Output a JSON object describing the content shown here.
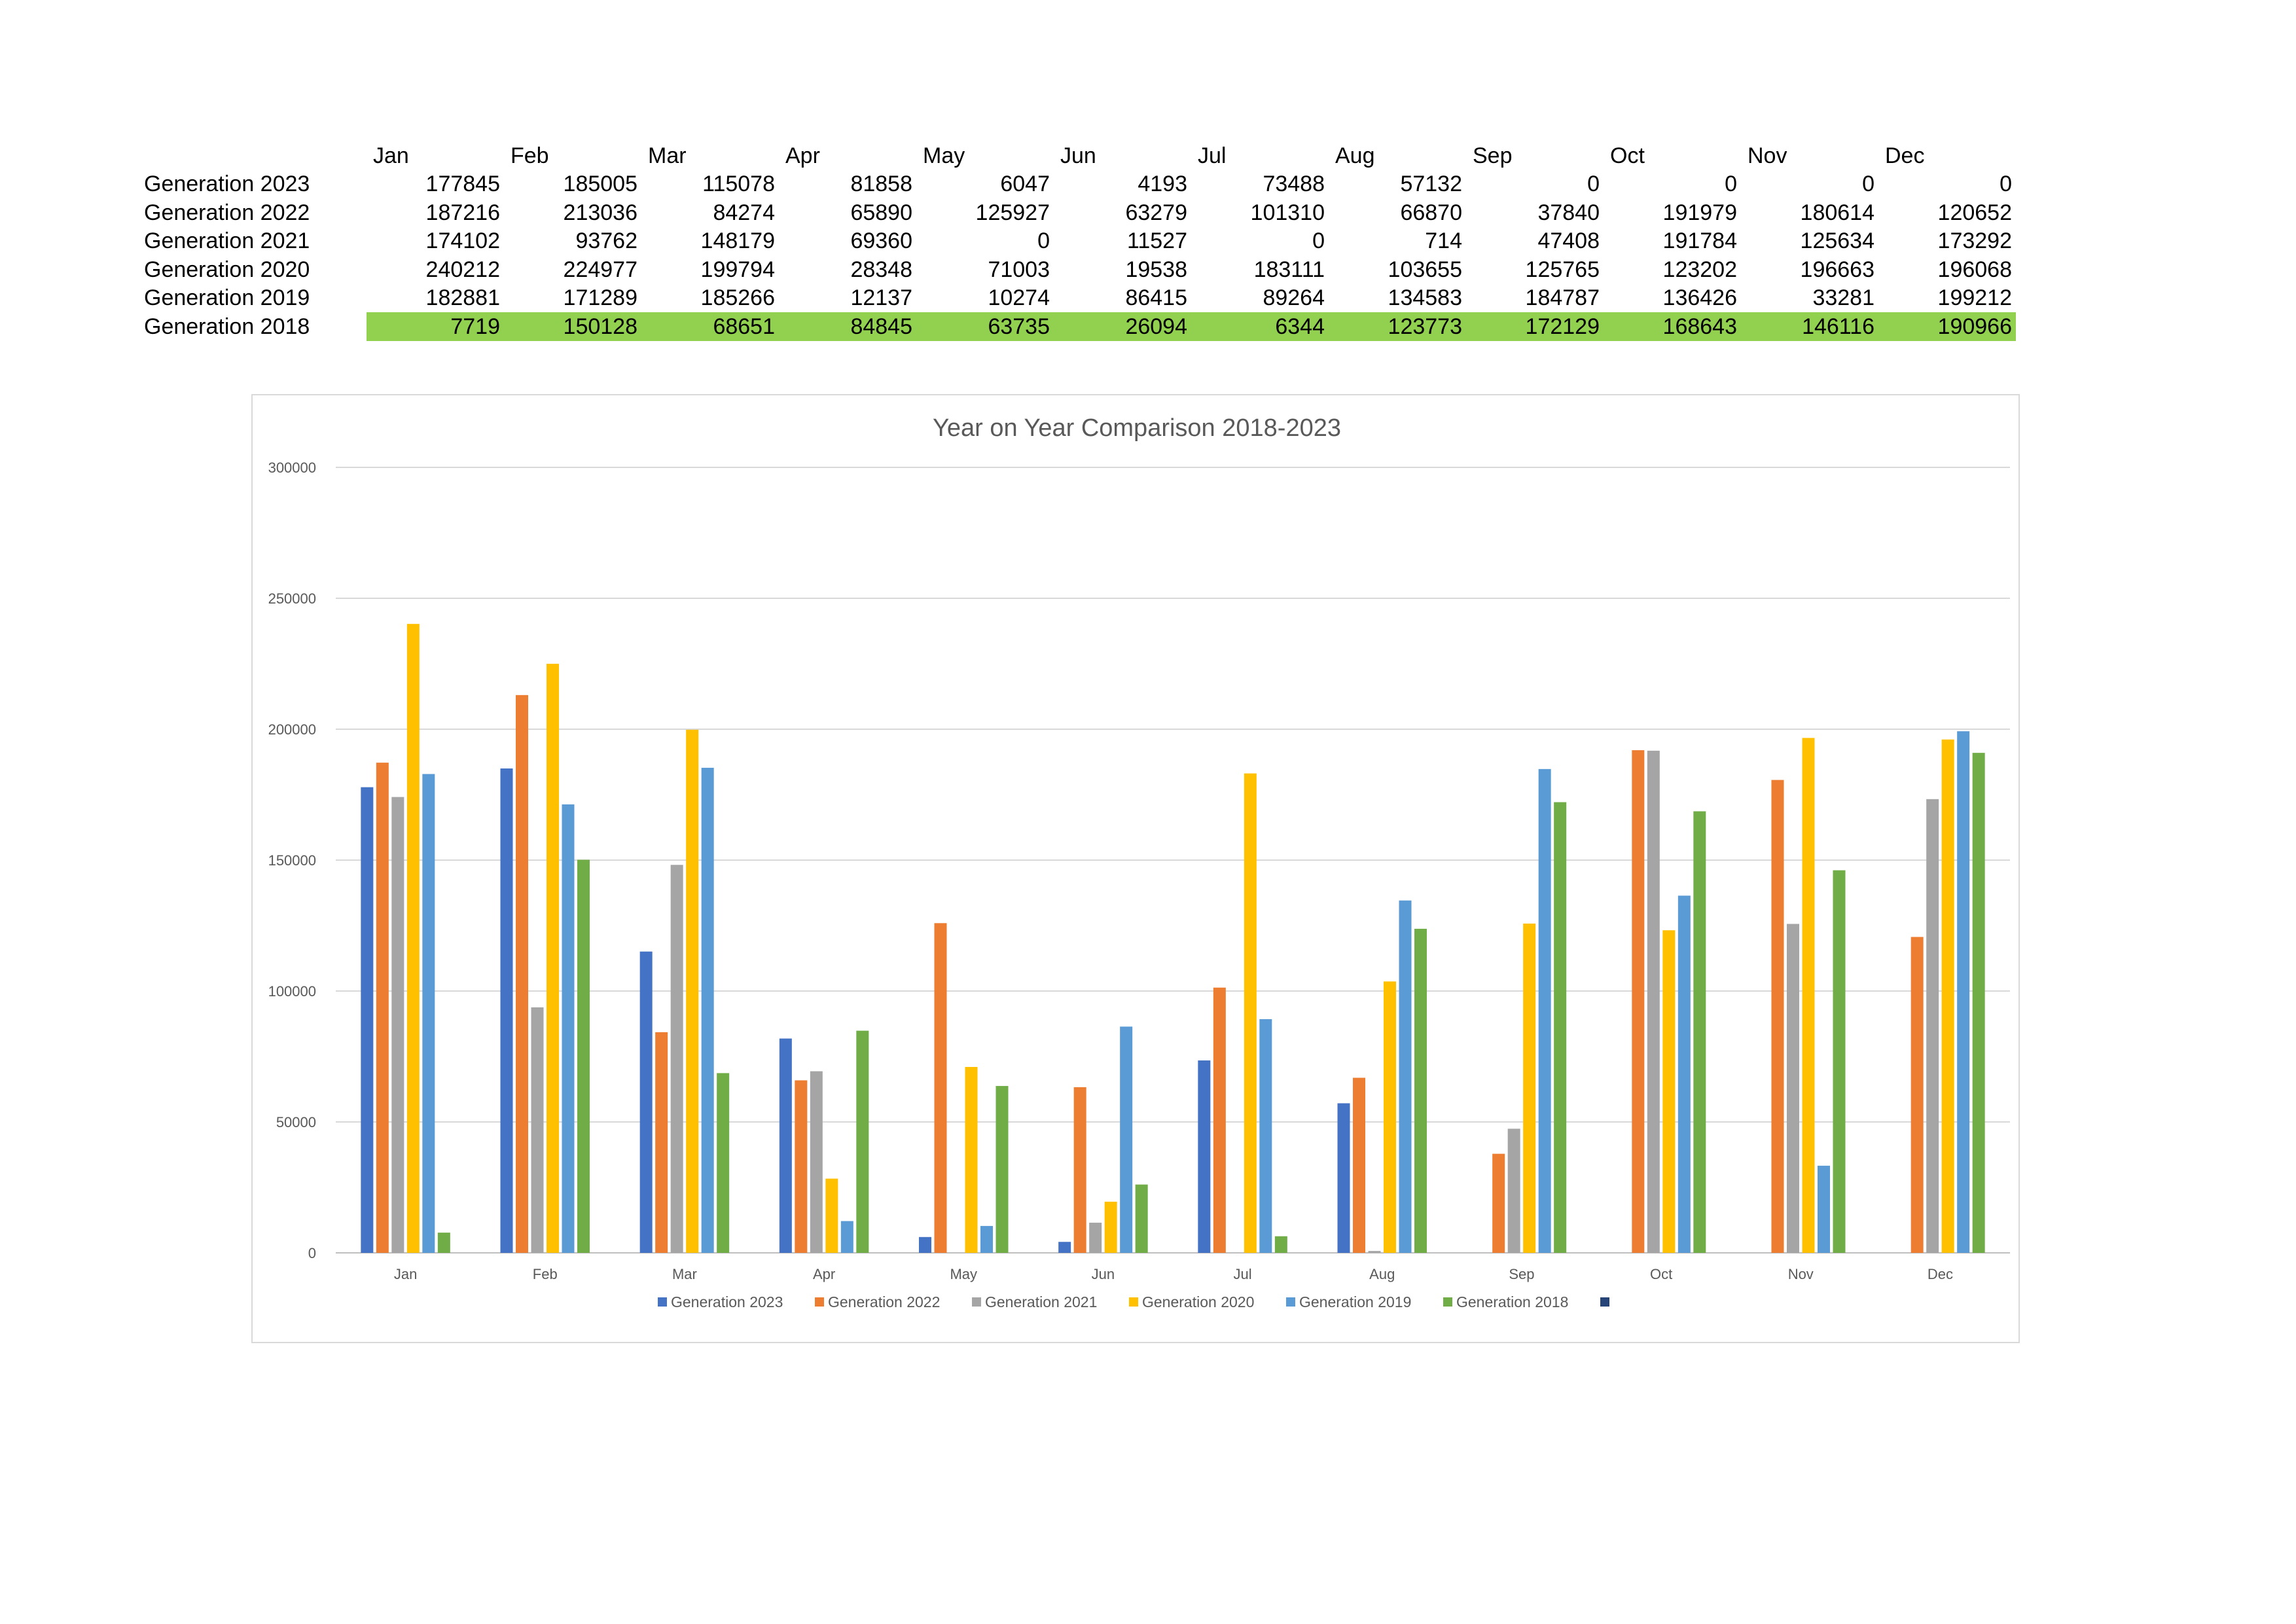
{
  "table": {
    "months": [
      "Jan",
      "Feb",
      "Mar",
      "Apr",
      "May",
      "Jun",
      "Jul",
      "Aug",
      "Sep",
      "Oct",
      "Nov",
      "Dec"
    ],
    "rows": [
      {
        "label": "Generation 2023",
        "values": [
          "177845",
          "185005",
          "115078",
          "81858",
          "6047",
          "4193",
          "73488",
          "57132",
          "0",
          "0",
          "0",
          "0"
        ]
      },
      {
        "label": "Generation 2022",
        "values": [
          "187216",
          "213036",
          "84274",
          "65890",
          "125927",
          "63279",
          "101310",
          "66870",
          "37840",
          "191979",
          "180614",
          "120652"
        ]
      },
      {
        "label": "Generation 2021",
        "values": [
          "174102",
          "93762",
          "148179",
          "69360",
          "0",
          "11527",
          "0",
          "714",
          "47408",
          "191784",
          "125634",
          "173292"
        ]
      },
      {
        "label": "Generation 2020",
        "values": [
          "240212",
          "224977",
          "199794",
          "28348",
          "71003",
          "19538",
          "183111",
          "103655",
          "125765",
          "123202",
          "196663",
          "196068"
        ]
      },
      {
        "label": "Generation 2019",
        "values": [
          "182881",
          "171289",
          "185266",
          "12137",
          "10274",
          "86415",
          "89264",
          "134583",
          "184787",
          "136426",
          "33281",
          "199212"
        ]
      },
      {
        "label": "Generation 2018",
        "values": [
          "7719",
          "150128",
          "68651",
          "84845",
          "63735",
          "26094",
          "6344",
          "123773",
          "172129",
          "168643",
          "146116",
          "190966"
        ],
        "highlight": true,
        "highlight_color": "#92d050"
      }
    ]
  },
  "chart_data": {
    "type": "bar",
    "title": "Year on Year Comparison 2018-2023",
    "xlabel": "",
    "ylabel": "",
    "ylim": [
      0,
      300000
    ],
    "yticks": [
      "0",
      "50000",
      "100000",
      "150000",
      "200000",
      "250000",
      "300000"
    ],
    "grid": true,
    "legend_position": "bottom",
    "categories": [
      "Jan",
      "Feb",
      "Mar",
      "Apr",
      "May",
      "Jun",
      "Jul",
      "Aug",
      "Sep",
      "Oct",
      "Nov",
      "Dec"
    ],
    "series": [
      {
        "name": "Generation 2023",
        "color": "#4472c4",
        "values": [
          177845,
          185005,
          115078,
          81858,
          6047,
          4193,
          73488,
          57132,
          0,
          0,
          0,
          0
        ]
      },
      {
        "name": "Generation 2022",
        "color": "#ed7d31",
        "values": [
          187216,
          213036,
          84274,
          65890,
          125927,
          63279,
          101310,
          66870,
          37840,
          191979,
          180614,
          120652
        ]
      },
      {
        "name": "Generation 2021",
        "color": "#a5a5a5",
        "values": [
          174102,
          93762,
          148179,
          69360,
          0,
          11527,
          0,
          714,
          47408,
          191784,
          125634,
          173292
        ]
      },
      {
        "name": "Generation 2020",
        "color": "#ffc000",
        "values": [
          240212,
          224977,
          199794,
          28348,
          71003,
          19538,
          183111,
          103655,
          125765,
          123202,
          196663,
          196068
        ]
      },
      {
        "name": "Generation 2019",
        "color": "#5b9bd5",
        "values": [
          182881,
          171289,
          185266,
          12137,
          10274,
          86415,
          89264,
          134583,
          184787,
          136426,
          33281,
          199212
        ]
      },
      {
        "name": "Generation 2018",
        "color": "#70ad47",
        "values": [
          7719,
          150128,
          68651,
          84845,
          63735,
          26094,
          6344,
          123773,
          172129,
          168643,
          146116,
          190966
        ]
      }
    ],
    "legend_extra_entry_color": "#264478"
  }
}
